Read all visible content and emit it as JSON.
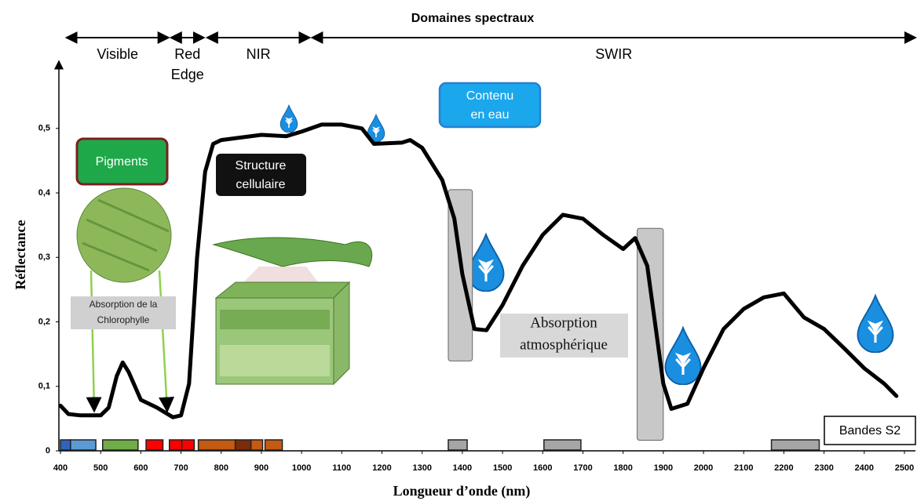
{
  "chart_data": {
    "type": "line",
    "title": "Domaines spectraux",
    "xlabel": "Longueur d’onde (nm)",
    "ylabel": "Réflectance",
    "x": [
      400,
      420,
      450,
      500,
      520,
      540,
      555,
      570,
      600,
      640,
      680,
      700,
      720,
      740,
      760,
      780,
      800,
      900,
      962,
      1000,
      1050,
      1100,
      1150,
      1180,
      1250,
      1270,
      1300,
      1350,
      1380,
      1400,
      1430,
      1460,
      1500,
      1550,
      1600,
      1650,
      1700,
      1750,
      1800,
      1830,
      1860,
      1900,
      1920,
      1960,
      2000,
      2050,
      2100,
      2150,
      2200,
      2250,
      2300,
      2350,
      2400,
      2450,
      2480
    ],
    "values": [
      0.07,
      0.057,
      0.055,
      0.055,
      0.067,
      0.116,
      0.137,
      0.122,
      0.079,
      0.067,
      0.052,
      0.055,
      0.104,
      0.3,
      0.433,
      0.476,
      0.482,
      0.49,
      0.488,
      0.495,
      0.506,
      0.506,
      0.5,
      0.476,
      0.478,
      0.482,
      0.47,
      0.42,
      0.36,
      0.274,
      0.189,
      0.187,
      0.226,
      0.287,
      0.335,
      0.366,
      0.36,
      0.335,
      0.313,
      0.33,
      0.287,
      0.104,
      0.065,
      0.073,
      0.128,
      0.189,
      0.22,
      0.238,
      0.244,
      0.207,
      0.189,
      0.159,
      0.128,
      0.104,
      0.085
    ],
    "color": "#000000",
    "xlim": [
      400,
      2500
    ],
    "ylim": [
      0,
      0.58
    ],
    "xticks": [
      400,
      500,
      600,
      700,
      800,
      900,
      1000,
      1100,
      1200,
      1300,
      1400,
      1500,
      1600,
      1700,
      1800,
      1900,
      2000,
      2100,
      2200,
      2300,
      2400,
      2500
    ],
    "yticks": [
      0,
      {
        "value": 0.1,
        "label": "0,1"
      },
      {
        "value": 0.2,
        "label": "0,2"
      },
      {
        "value": 0.3,
        "label": "0,3"
      },
      {
        "value": 0.4,
        "label": "0,4"
      },
      {
        "value": 0.5,
        "label": "0,5"
      }
    ],
    "domains": [
      {
        "label_lines": [
          "Visible"
        ],
        "start": 415,
        "end": 669
      },
      {
        "label_lines": [
          "Red",
          "Edge"
        ],
        "start": 675,
        "end": 757
      },
      {
        "label_lines": [
          "NIR"
        ],
        "start": 765,
        "end": 1020
      },
      {
        "label_lines": [
          "SWIR"
        ],
        "start": 1026,
        "end": 2530
      }
    ],
    "absorption_regions": [
      {
        "start": 1365,
        "end": 1425,
        "top": 0.405,
        "bottom": 0.188
      },
      {
        "start": 1835,
        "end": 1900,
        "top": 0.345,
        "bottom": 0.065
      }
    ],
    "bands_label": "Bandes S2",
    "bands": [
      {
        "start": 400,
        "end": 425,
        "color": "#2e64c0"
      },
      {
        "start": 425,
        "end": 488,
        "color": "#5b9bd5"
      },
      {
        "start": 505,
        "end": 593,
        "color": "#70ad47"
      },
      {
        "start": 613,
        "end": 655,
        "color": "#ff0000"
      },
      {
        "start": 671,
        "end": 702,
        "color": "#ff0000"
      },
      {
        "start": 702,
        "end": 733,
        "color": "#ff0000"
      },
      {
        "start": 743,
        "end": 835,
        "color": "#c55a11"
      },
      {
        "start": 835,
        "end": 874,
        "color": "#7b2c0c"
      },
      {
        "start": 874,
        "end": 903,
        "color": "#c55a11"
      },
      {
        "start": 909,
        "end": 952,
        "color": "#c55a11"
      },
      {
        "start": 1365,
        "end": 1412,
        "color": "#a6a6a6"
      },
      {
        "start": 1603,
        "end": 1695,
        "color": "#a6a6a6"
      },
      {
        "start": 2169,
        "end": 2288,
        "color": "#a6a6a6"
      }
    ],
    "annotations": {
      "pigments": [
        "Pigments"
      ],
      "structure": [
        "Structure",
        "cellulaire"
      ],
      "water": [
        "Contenu",
        "en eau"
      ],
      "chlorophyll": [
        "Absorption de la",
        "Chlorophylle"
      ],
      "atmosphere": [
        "Absorption",
        "atmosphérique"
      ]
    }
  }
}
